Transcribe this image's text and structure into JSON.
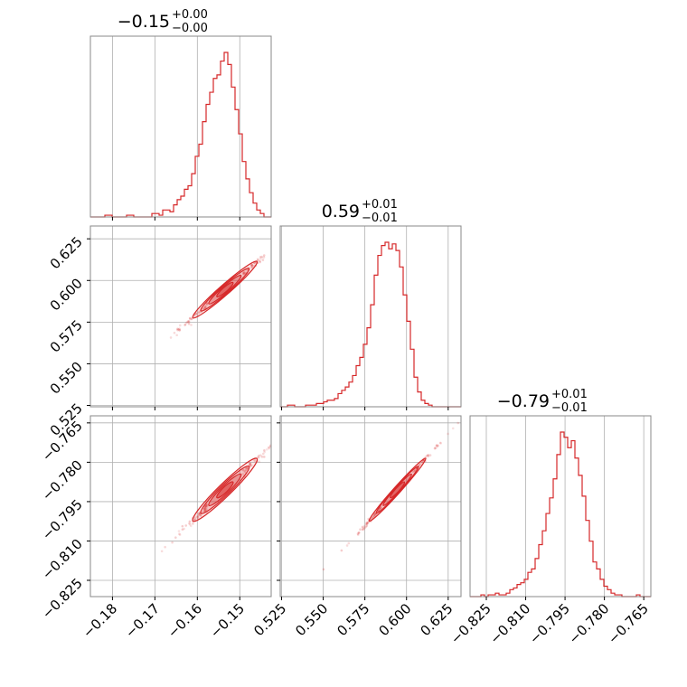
{
  "colors": {
    "line": "#d62728",
    "grid": "#b0b0b0",
    "frame": "#888888"
  },
  "chart_data": {
    "type": "corner",
    "grid": true,
    "parameters": [
      {
        "title_value": "−0.15",
        "err_plus": "+0.00",
        "err_minus": "−0.00",
        "range": [
          -0.1852,
          -0.1426
        ],
        "ticks": [
          -0.18,
          -0.17,
          -0.16,
          -0.15
        ],
        "tick_labels": [
          "−0.18",
          "−0.17",
          "−0.16",
          "−0.15"
        ]
      },
      {
        "title_value": "0.59",
        "err_plus": "+0.01",
        "err_minus": "−0.01",
        "range": [
          0.5242,
          0.6327
        ],
        "ticks": [
          0.525,
          0.55,
          0.575,
          0.6,
          0.625
        ],
        "tick_labels": [
          "0.525",
          "0.550",
          "0.575",
          "0.600",
          "0.625"
        ]
      },
      {
        "title_value": "−0.79",
        "err_plus": "+0.01",
        "err_minus": "−0.01",
        "range": [
          -0.8312,
          -0.7623
        ],
        "ticks": [
          -0.825,
          -0.81,
          -0.795,
          -0.78,
          -0.765
        ],
        "tick_labels": [
          "−0.825",
          "−0.810",
          "−0.795",
          "−0.780",
          "−0.765"
        ]
      }
    ],
    "histograms": [
      [
        0,
        0,
        0,
        0,
        1,
        1,
        0,
        0,
        0,
        0,
        1,
        1,
        0,
        0,
        0,
        0,
        0,
        2,
        2,
        1,
        4,
        4,
        3,
        7,
        10,
        12,
        16,
        18,
        25,
        35,
        42,
        55,
        65,
        72,
        80,
        82,
        90,
        95,
        88,
        75,
        62,
        48,
        32,
        22,
        14,
        8,
        4,
        2,
        0,
        0
      ],
      [
        0,
        0,
        1,
        1,
        0,
        0,
        0,
        1,
        1,
        1,
        2,
        2,
        3,
        4,
        4,
        5,
        8,
        10,
        12,
        15,
        19,
        25,
        30,
        38,
        48,
        62,
        80,
        92,
        98,
        100,
        96,
        99,
        95,
        85,
        68,
        52,
        35,
        18,
        9,
        4,
        2,
        1,
        0,
        0,
        0,
        0,
        0,
        0,
        0,
        0
      ],
      [
        0,
        0,
        0,
        1,
        0,
        1,
        1,
        2,
        1,
        1,
        2,
        4,
        5,
        7,
        8,
        10,
        14,
        16,
        22,
        30,
        38,
        48,
        57,
        68,
        82,
        95,
        92,
        86,
        90,
        80,
        70,
        58,
        44,
        32,
        20,
        16,
        10,
        6,
        4,
        2,
        1,
        1,
        0,
        0,
        0,
        0,
        1,
        0,
        0,
        0
      ]
    ],
    "pairs": [
      {
        "row": 1,
        "col": 0,
        "x_mean": -0.1535,
        "y_mean": 0.5945,
        "sx": 0.0038,
        "sy": 0.0085,
        "rho": 0.985
      },
      {
        "row": 2,
        "col": 0,
        "x_mean": -0.1535,
        "y_mean": -0.7905,
        "sx": 0.0038,
        "sy": 0.006,
        "rho": 0.975
      },
      {
        "row": 2,
        "col": 1,
        "x_mean": 0.5945,
        "y_mean": -0.7905,
        "sx": 0.0085,
        "sy": 0.006,
        "rho": 0.995
      }
    ]
  }
}
